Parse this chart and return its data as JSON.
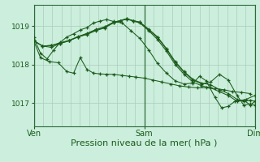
{
  "bg_color": "#cceedd",
  "line_color": "#1a5c1a",
  "grid_color": "#aaccbb",
  "xlabel": "Pression niveau de la mer( hPa )",
  "xlabel_fontsize": 8,
  "tick_label_color": "#1a5c1a",
  "ylim": [
    1016.4,
    1019.55
  ],
  "yticks": [
    1017,
    1018,
    1019
  ],
  "xtick_pos": [
    0.0,
    0.5,
    1.0
  ],
  "xtick_labels": [
    "Ven",
    "Sam",
    "Dim"
  ],
  "lines": [
    [
      [
        0.0,
        1018.62
      ],
      [
        0.03,
        1018.18
      ],
      [
        0.07,
        1018.08
      ],
      [
        0.11,
        1018.05
      ],
      [
        0.15,
        1017.82
      ],
      [
        0.18,
        1017.78
      ],
      [
        0.21,
        1018.18
      ],
      [
        0.24,
        1017.88
      ],
      [
        0.27,
        1017.78
      ],
      [
        0.3,
        1017.76
      ],
      [
        0.33,
        1017.75
      ],
      [
        0.36,
        1017.75
      ],
      [
        0.4,
        1017.72
      ],
      [
        0.43,
        1017.7
      ],
      [
        0.46,
        1017.68
      ],
      [
        0.5,
        1017.65
      ],
      [
        0.54,
        1017.6
      ],
      [
        0.58,
        1017.55
      ],
      [
        0.62,
        1017.5
      ],
      [
        0.66,
        1017.45
      ],
      [
        0.7,
        1017.42
      ],
      [
        0.74,
        1017.4
      ],
      [
        0.78,
        1017.4
      ],
      [
        0.82,
        1017.38
      ],
      [
        0.86,
        1017.35
      ],
      [
        0.9,
        1017.3
      ],
      [
        0.94,
        1017.28
      ],
      [
        0.98,
        1017.25
      ]
    ],
    [
      [
        0.0,
        1018.62
      ],
      [
        0.04,
        1018.48
      ],
      [
        0.08,
        1018.45
      ],
      [
        0.12,
        1018.55
      ],
      [
        0.16,
        1018.62
      ],
      [
        0.2,
        1018.72
      ],
      [
        0.24,
        1018.78
      ],
      [
        0.28,
        1018.88
      ],
      [
        0.32,
        1018.95
      ],
      [
        0.36,
        1019.08
      ],
      [
        0.39,
        1019.13
      ],
      [
        0.42,
        1019.18
      ],
      [
        0.45,
        1019.13
      ],
      [
        0.48,
        1019.08
      ],
      [
        0.52,
        1018.88
      ],
      [
        0.56,
        1018.65
      ],
      [
        0.6,
        1018.35
      ],
      [
        0.64,
        1018.0
      ],
      [
        0.68,
        1017.75
      ],
      [
        0.72,
        1017.55
      ],
      [
        0.76,
        1017.45
      ],
      [
        0.8,
        1017.4
      ],
      [
        0.84,
        1017.3
      ],
      [
        0.88,
        1017.2
      ],
      [
        0.92,
        1017.05
      ],
      [
        0.96,
        1017.1
      ],
      [
        1.0,
        1017.2
      ]
    ],
    [
      [
        0.0,
        1018.62
      ],
      [
        0.04,
        1018.48
      ],
      [
        0.08,
        1018.5
      ],
      [
        0.12,
        1018.55
      ],
      [
        0.16,
        1018.62
      ],
      [
        0.2,
        1018.72
      ],
      [
        0.24,
        1018.8
      ],
      [
        0.28,
        1018.9
      ],
      [
        0.32,
        1018.97
      ],
      [
        0.36,
        1019.09
      ],
      [
        0.39,
        1019.14
      ],
      [
        0.42,
        1019.19
      ],
      [
        0.45,
        1019.14
      ],
      [
        0.48,
        1019.1
      ],
      [
        0.52,
        1018.9
      ],
      [
        0.56,
        1018.7
      ],
      [
        0.6,
        1018.4
      ],
      [
        0.64,
        1018.05
      ],
      [
        0.68,
        1017.8
      ],
      [
        0.72,
        1017.6
      ],
      [
        0.76,
        1017.5
      ],
      [
        0.8,
        1017.55
      ],
      [
        0.84,
        1017.75
      ],
      [
        0.88,
        1017.6
      ],
      [
        0.92,
        1017.2
      ],
      [
        0.95,
        1016.95
      ],
      [
        0.98,
        1016.98
      ],
      [
        1.0,
        1016.95
      ]
    ],
    [
      [
        0.0,
        1018.62
      ],
      [
        0.04,
        1018.48
      ],
      [
        0.08,
        1018.5
      ],
      [
        0.12,
        1018.57
      ],
      [
        0.16,
        1018.63
      ],
      [
        0.2,
        1018.73
      ],
      [
        0.24,
        1018.81
      ],
      [
        0.28,
        1018.91
      ],
      [
        0.32,
        1018.98
      ],
      [
        0.36,
        1019.1
      ],
      [
        0.39,
        1019.14
      ],
      [
        0.42,
        1019.19
      ],
      [
        0.45,
        1019.14
      ],
      [
        0.48,
        1019.1
      ],
      [
        0.52,
        1018.92
      ],
      [
        0.56,
        1018.72
      ],
      [
        0.6,
        1018.42
      ],
      [
        0.64,
        1018.08
      ],
      [
        0.68,
        1017.82
      ],
      [
        0.72,
        1017.62
      ],
      [
        0.76,
        1017.52
      ],
      [
        0.8,
        1017.48
      ],
      [
        0.84,
        1017.35
      ],
      [
        0.88,
        1017.25
      ],
      [
        0.92,
        1017.1
      ],
      [
        0.95,
        1017.05
      ],
      [
        0.98,
        1017.08
      ],
      [
        1.0,
        1017.05
      ]
    ],
    [
      [
        0.0,
        1018.7
      ],
      [
        0.03,
        1018.3
      ],
      [
        0.06,
        1018.15
      ],
      [
        0.09,
        1018.38
      ],
      [
        0.12,
        1018.58
      ],
      [
        0.15,
        1018.72
      ],
      [
        0.18,
        1018.8
      ],
      [
        0.21,
        1018.9
      ],
      [
        0.24,
        1018.96
      ],
      [
        0.27,
        1019.08
      ],
      [
        0.3,
        1019.13
      ],
      [
        0.33,
        1019.17
      ],
      [
        0.36,
        1019.12
      ],
      [
        0.4,
        1019.08
      ],
      [
        0.44,
        1018.88
      ],
      [
        0.48,
        1018.68
      ],
      [
        0.52,
        1018.38
      ],
      [
        0.56,
        1018.03
      ],
      [
        0.6,
        1017.78
      ],
      [
        0.64,
        1017.58
      ],
      [
        0.68,
        1017.5
      ],
      [
        0.72,
        1017.52
      ],
      [
        0.75,
        1017.7
      ],
      [
        0.78,
        1017.58
      ],
      [
        0.82,
        1017.15
      ],
      [
        0.85,
        1016.88
      ],
      [
        0.88,
        1016.92
      ],
      [
        0.91,
        1017.05
      ],
      [
        0.95,
        1017.08
      ],
      [
        0.98,
        1016.95
      ],
      [
        1.0,
        1017.05
      ]
    ]
  ]
}
